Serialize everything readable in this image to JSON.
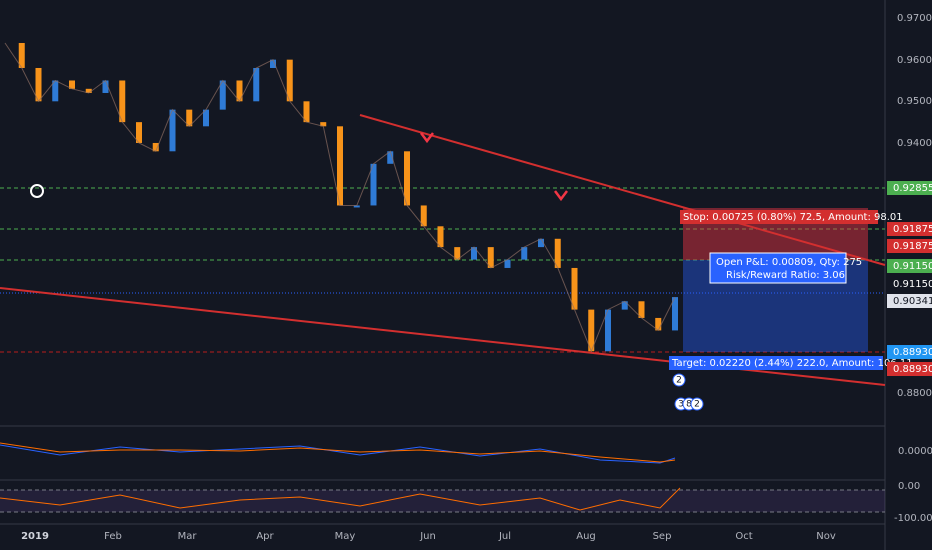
{
  "price_axis": {
    "ticks": [
      "0.97000",
      "0.96000",
      "0.95000",
      "0.94000",
      "0.88000"
    ],
    "markers": [
      {
        "label": "0.92855",
        "kind": "green"
      },
      {
        "label": "0.91875",
        "kind": "red"
      },
      {
        "label": "0.91875",
        "kind": "red"
      },
      {
        "label": "0.91150",
        "kind": "green"
      },
      {
        "label": "0.91150",
        "kind": "dark"
      },
      {
        "label": "0.90341",
        "kind": "light"
      },
      {
        "label": "0.88930",
        "kind": "blue"
      },
      {
        "label": "0.88930",
        "kind": "red"
      }
    ]
  },
  "time_axis": {
    "labels": [
      "2019",
      "Feb",
      "Mar",
      "Apr",
      "May",
      "Jun",
      "Jul",
      "Aug",
      "Sep",
      "Oct",
      "Nov"
    ]
  },
  "macd_axis": {
    "label": "0.00000"
  },
  "rsi_axis": {
    "labels": [
      "0.00",
      "-100.00"
    ]
  },
  "position": {
    "stop": "Stop: 0.00725 (0.80%) 72.5, Amount: 98.01",
    "pnl": "Open P&L: 0.00809, Qty: 275",
    "ratio": "Risk/Reward Ratio: 3.06",
    "target": "Target: 0.02220 (2.44%) 222.0, Amount: 106.11"
  },
  "events": [
    "2",
    "3",
    "8",
    "2"
  ],
  "price": {
    "ylim": [
      0.97432,
      0.8723
    ],
    "closes": [
      0.964,
      0.958,
      0.95,
      0.955,
      0.953,
      0.952,
      0.955,
      0.945,
      0.94,
      0.938,
      0.948,
      0.944,
      0.948,
      0.955,
      0.95,
      0.958,
      0.96,
      0.95,
      0.945,
      0.944,
      0.925,
      0.925,
      0.935,
      0.938,
      0.925,
      0.92,
      0.915,
      0.912,
      0.915,
      0.91,
      0.912,
      0.915,
      0.917,
      0.91,
      0.9,
      0.89,
      0.9,
      0.902,
      0.898,
      0.895,
      0.903
    ]
  }
}
